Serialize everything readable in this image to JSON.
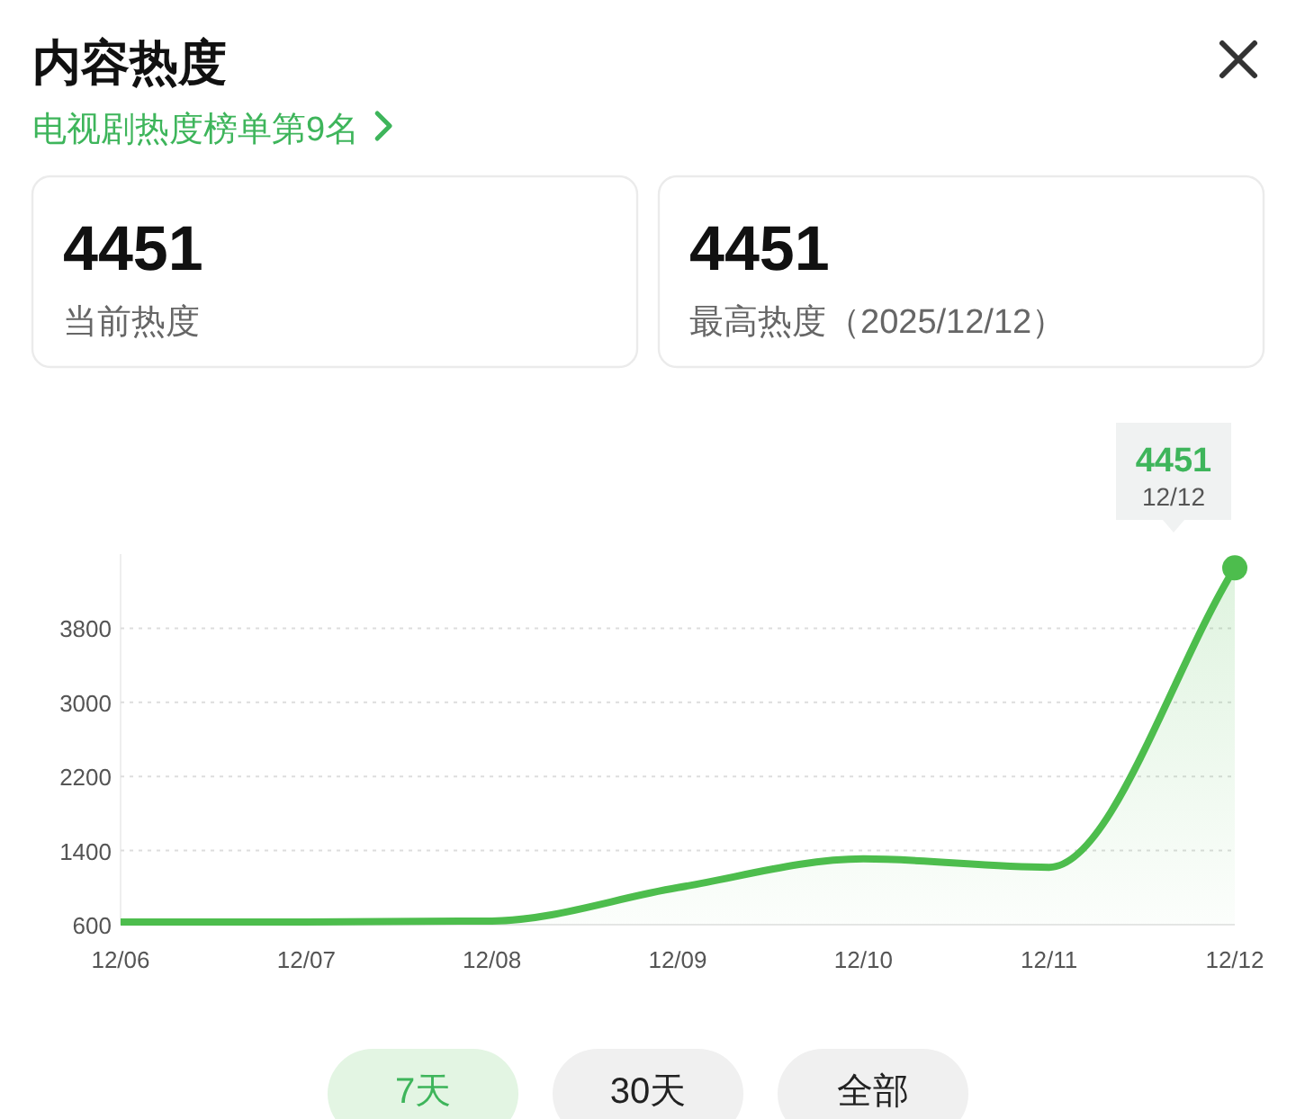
{
  "chart_data": {
    "type": "area",
    "title": "内容热度",
    "subtitle": "电视剧热度榜单第9名",
    "categories": [
      "12/06",
      "12/07",
      "12/08",
      "12/09",
      "12/10",
      "12/11",
      "12/12"
    ],
    "series": [
      {
        "color": "#4dbd4d",
        "values": [
          630,
          630,
          640,
          1000,
          1310,
          1220,
          4451
        ]
      }
    ],
    "ylim": [
      600,
      4600
    ],
    "yticks": [
      600,
      1400,
      2200,
      3000,
      3800
    ],
    "grid": "y",
    "marker": "none",
    "line_style": "solid",
    "annotations": [
      "4451",
      "当前热度",
      "4451",
      "最高热度（2025/12/12）",
      "7天",
      "30天",
      "全部",
      {
        "text": "4451",
        "x": "12/12",
        "y": 4451
      }
    ]
  }
}
